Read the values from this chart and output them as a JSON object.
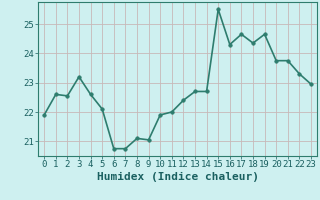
{
  "x": [
    0,
    1,
    2,
    3,
    4,
    5,
    6,
    7,
    8,
    9,
    10,
    11,
    12,
    13,
    14,
    15,
    16,
    17,
    18,
    19,
    20,
    21,
    22,
    23
  ],
  "y": [
    21.9,
    22.6,
    22.55,
    23.2,
    22.6,
    22.1,
    20.75,
    20.75,
    21.1,
    21.05,
    21.9,
    22.0,
    22.4,
    22.7,
    22.7,
    25.5,
    24.3,
    24.65,
    24.35,
    24.65,
    23.75,
    23.75,
    23.3,
    22.95
  ],
  "line_color": "#2e7d6e",
  "marker": "o",
  "markersize": 2.5,
  "linewidth": 1.2,
  "bg_color": "#cef0f0",
  "grid_color": "#c8b8b8",
  "xlabel": "Humidex (Indice chaleur)",
  "ylim": [
    20.5,
    25.75
  ],
  "yticks": [
    21,
    22,
    23,
    24,
    25
  ],
  "xticks": [
    0,
    1,
    2,
    3,
    4,
    5,
    6,
    7,
    8,
    9,
    10,
    11,
    12,
    13,
    14,
    15,
    16,
    17,
    18,
    19,
    20,
    21,
    22,
    23
  ],
  "tick_fontsize": 6.5,
  "xlabel_fontsize": 8,
  "text_color": "#1a6060"
}
